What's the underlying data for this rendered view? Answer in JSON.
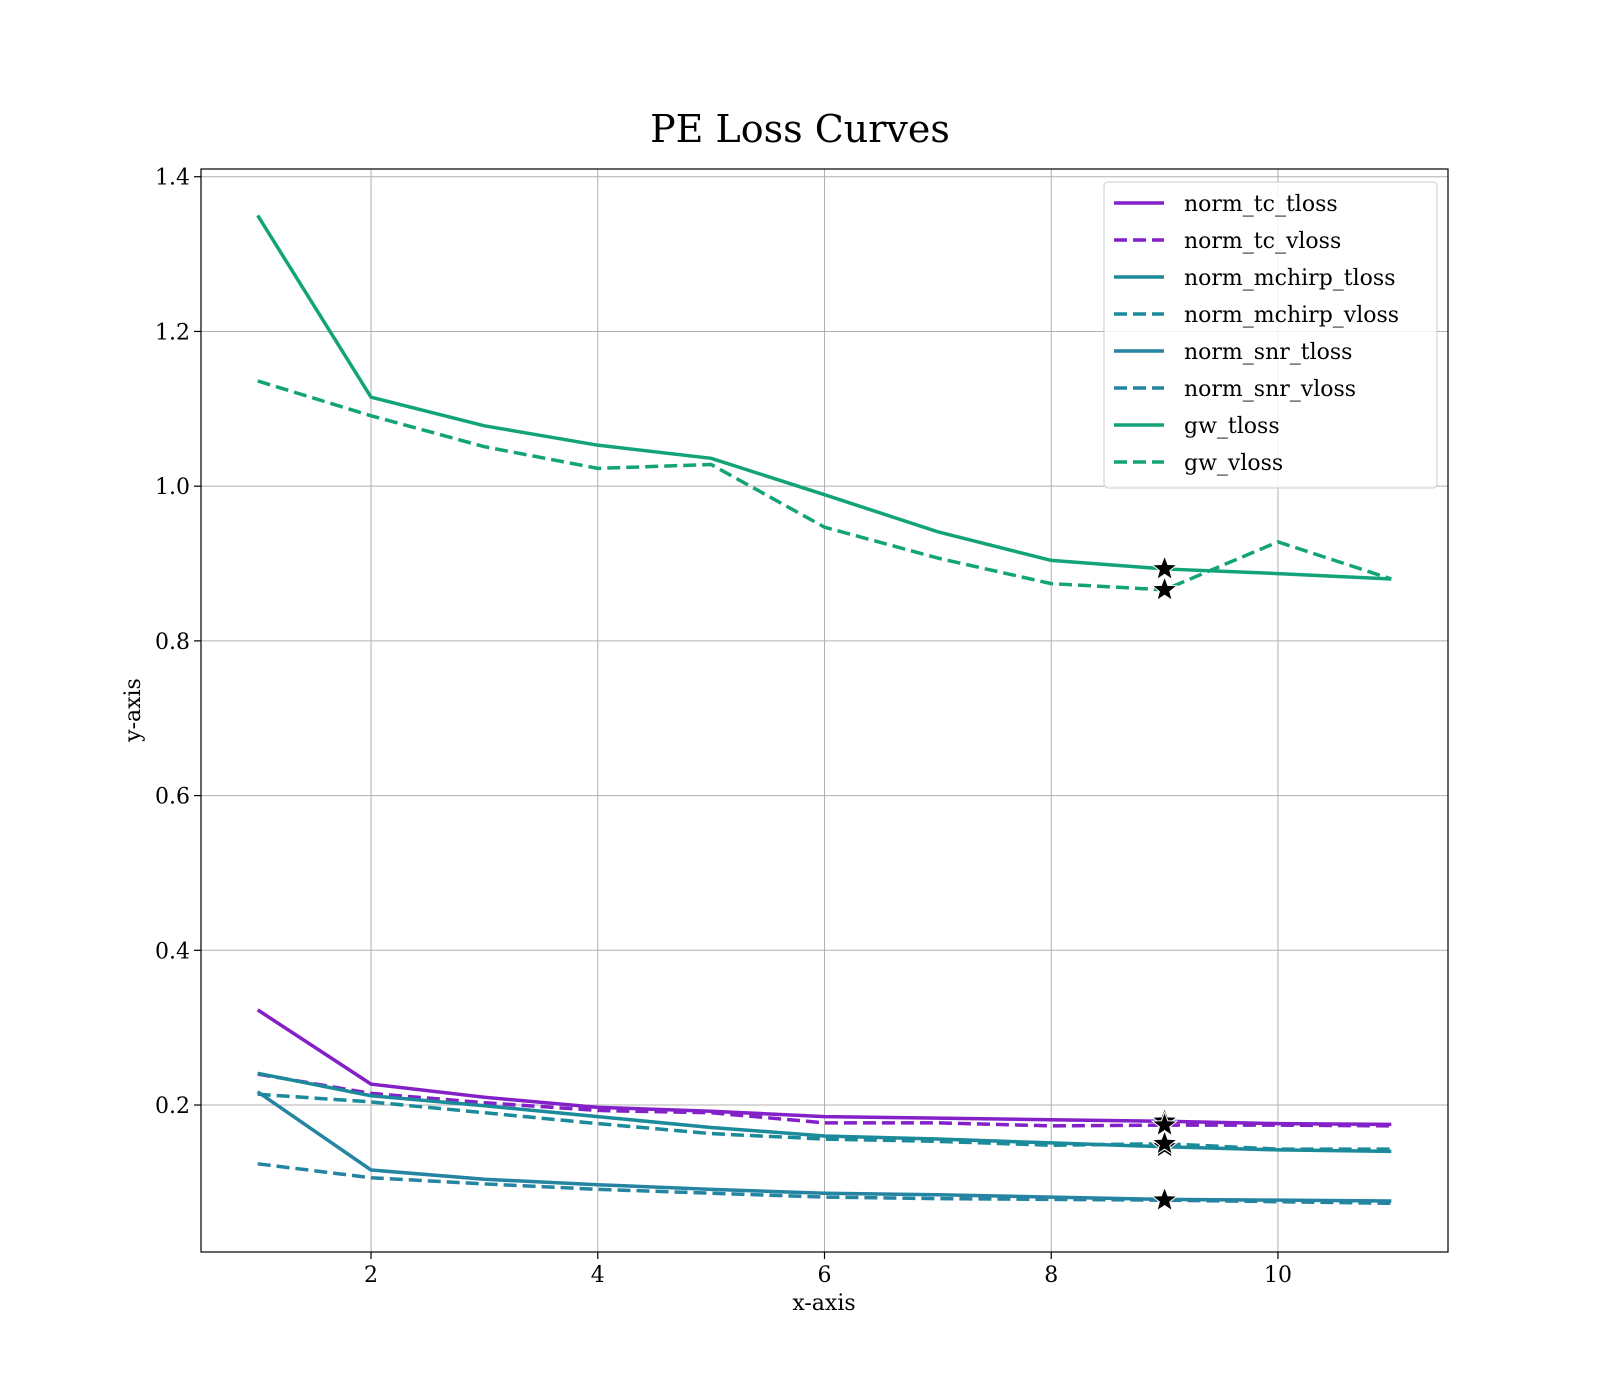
{
  "chart_data": {
    "type": "line",
    "title": "PE Loss Curves",
    "xlabel": "x-axis",
    "ylabel": "y-axis",
    "xlim": [
      0.5,
      11.5
    ],
    "ylim": [
      0.01,
      1.41
    ],
    "xticks": [
      2,
      4,
      6,
      8,
      10
    ],
    "yticks": [
      0.2,
      0.4,
      0.6,
      0.8,
      1.0,
      1.2,
      1.4
    ],
    "xtick_labels": [
      "2",
      "4",
      "6",
      "8",
      "10"
    ],
    "ytick_labels": [
      "0.2",
      "0.4",
      "0.6",
      "0.8",
      "1.0",
      "1.2",
      "1.4"
    ],
    "grid": true,
    "legend_position": "top-right",
    "x": [
      1,
      2,
      3,
      4,
      5,
      6,
      7,
      8,
      9,
      10,
      11
    ],
    "series": [
      {
        "name": "norm_tc_tloss",
        "color": "#8320C8",
        "dash": "solid",
        "values": [
          0.323,
          0.227,
          0.21,
          0.197,
          0.192,
          0.185,
          0.183,
          0.181,
          0.179,
          0.176,
          0.175
        ]
      },
      {
        "name": "norm_tc_vloss",
        "color": "#8320C8",
        "dash": "dashed",
        "values": [
          0.24,
          0.215,
          0.203,
          0.193,
          0.19,
          0.177,
          0.177,
          0.173,
          0.174,
          0.174,
          0.173
        ]
      },
      {
        "name": "norm_mchirp_tloss",
        "color": "#1B8A9A",
        "dash": "solid",
        "values": [
          0.241,
          0.212,
          0.199,
          0.185,
          0.171,
          0.16,
          0.156,
          0.151,
          0.146,
          0.142,
          0.14
        ]
      },
      {
        "name": "norm_mchirp_vloss",
        "color": "#1B8A9A",
        "dash": "dashed",
        "values": [
          0.214,
          0.204,
          0.19,
          0.176,
          0.163,
          0.156,
          0.153,
          0.148,
          0.15,
          0.143,
          0.143
        ]
      },
      {
        "name": "norm_snr_tloss",
        "color": "#2484A1",
        "dash": "solid",
        "values": [
          0.217,
          0.116,
          0.104,
          0.097,
          0.091,
          0.086,
          0.084,
          0.081,
          0.078,
          0.077,
          0.076
        ]
      },
      {
        "name": "norm_snr_vloss",
        "color": "#2484A1",
        "dash": "dashed",
        "values": [
          0.124,
          0.106,
          0.098,
          0.091,
          0.086,
          0.081,
          0.079,
          0.078,
          0.077,
          0.075,
          0.073
        ]
      },
      {
        "name": "gw_tloss",
        "color": "#12A478",
        "dash": "solid",
        "values": [
          1.35,
          1.115,
          1.078,
          1.053,
          1.036,
          0.989,
          0.941,
          0.904,
          0.893,
          0.887,
          0.88
        ]
      },
      {
        "name": "gw_vloss",
        "color": "#12A478",
        "dash": "dashed",
        "values": [
          1.136,
          1.091,
          1.051,
          1.023,
          1.028,
          0.947,
          0.907,
          0.874,
          0.866,
          0.928,
          0.88
        ]
      }
    ],
    "best_markers": [
      {
        "series": "norm_tc_tloss",
        "x": 9,
        "y": 0.179
      },
      {
        "series": "norm_tc_vloss",
        "x": 9,
        "y": 0.174
      },
      {
        "series": "norm_mchirp_tloss",
        "x": 9,
        "y": 0.146
      },
      {
        "series": "norm_mchirp_vloss",
        "x": 9,
        "y": 0.15
      },
      {
        "series": "norm_snr_tloss",
        "x": 9,
        "y": 0.078
      },
      {
        "series": "norm_snr_vloss",
        "x": 9,
        "y": 0.077
      },
      {
        "series": "gw_tloss",
        "x": 9,
        "y": 0.893
      },
      {
        "series": "gw_vloss",
        "x": 9,
        "y": 0.866
      }
    ],
    "marker_color": "#000000"
  }
}
